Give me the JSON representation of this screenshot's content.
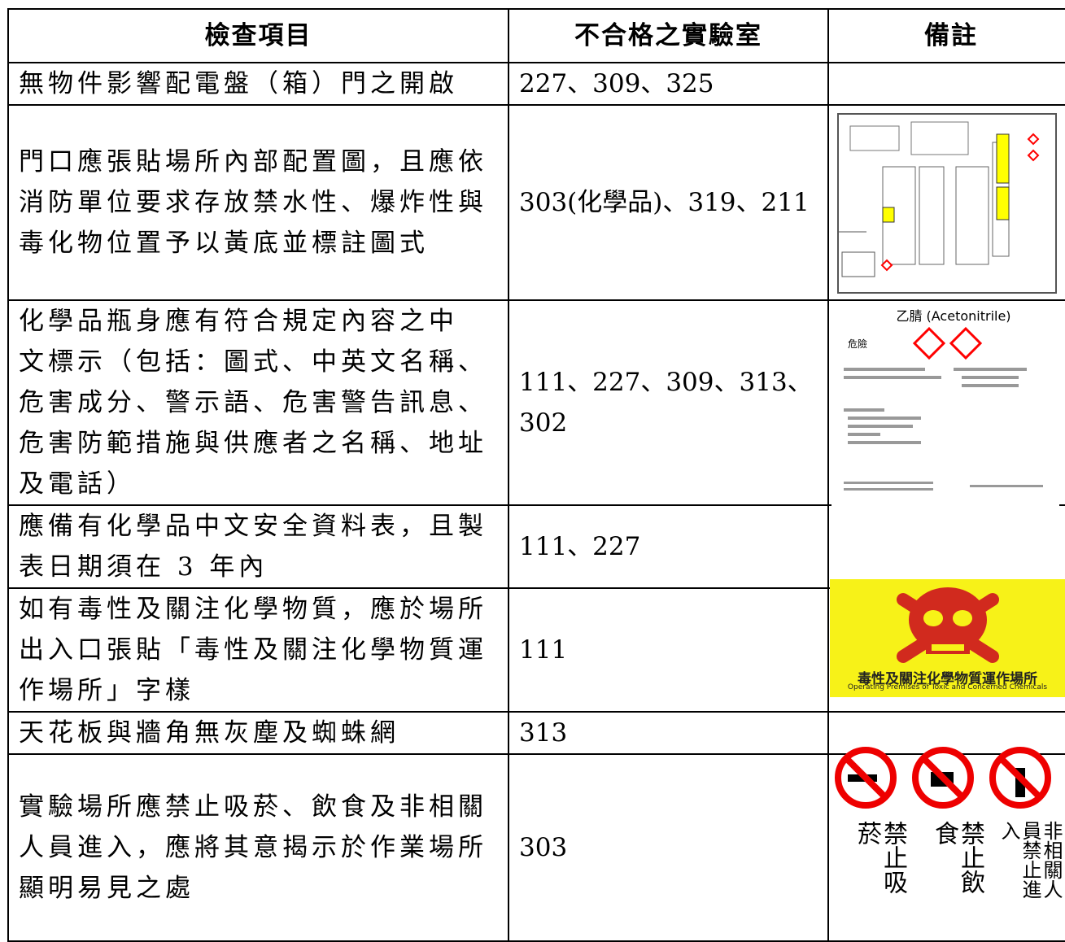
{
  "table": {
    "header": [
      "檢查項目",
      "不合格之實驗室",
      "備註"
    ],
    "rows": [
      {
        "item": [
          "無物件影響配電盤（箱）門之開啟"
        ],
        "labs": [
          "227、309、325"
        ]
      },
      {
        "item": [
          "門口應張貼場所內部配置圖，且應依",
          "消防單位要求存放禁水性、爆炸性與",
          "毒化物位置予以黃底並標註圖式"
        ],
        "labs": [
          "303(化學品)、319、211"
        ]
      },
      {
        "item": [
          "化學品瓶身應有符合規定內容之中",
          "文標示（包括：圖式、中英文名稱、",
          "危害成分、警示語、危害警告訊息、",
          "危害防範措施與供應者之名稱、地址",
          "及電話）"
        ],
        "labs": [
          "111、227、309、313、",
          "302"
        ]
      },
      {
        "item": [
          "應備有化學品中文安全資料表，且製",
          "表日期須在 3 年內"
        ],
        "labs": [
          "111、227"
        ]
      },
      {
        "item": [
          "如有毒性及關注化學物質，應於場所",
          "出入口張貼「毒性及關注化學物質運",
          "作場所」字樣"
        ],
        "labs": [
          "111"
        ]
      },
      {
        "item": [
          "天花板與牆角無灰塵及蜘蛛網"
        ],
        "labs": [
          "313"
        ]
      },
      {
        "item": [
          "實驗場所應禁止吸菸、飲食及非相關",
          "人員進入，應將其意揭示於作業場所",
          "顯明易見之處"
        ],
        "labs": [
          "303"
        ]
      }
    ]
  },
  "figures": {
    "label": {
      "title": "乙腈 (Acetonitrile)",
      "signal": "危險"
    },
    "toxic_sign": {
      "text": "毒性及關注化學物質運作場所",
      "english": "Operating Premises of Toxic and Concerned Chemicals"
    },
    "prohibitions": [
      "禁止吸菸",
      "禁止飲食",
      "非相關人員禁止進入"
    ]
  }
}
